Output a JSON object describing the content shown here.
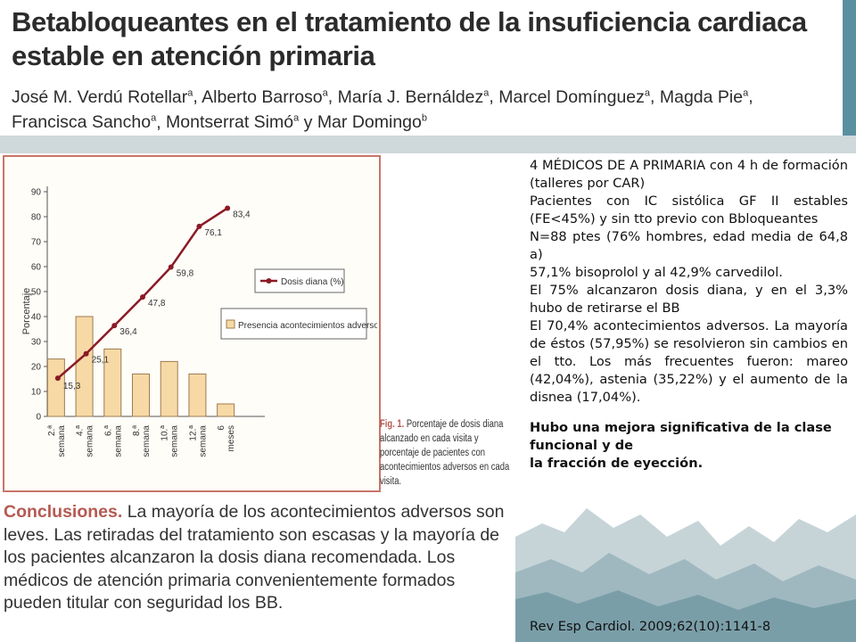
{
  "header": {
    "title_line1": "Betabloqueantes en el tratamiento de la insuficiencia cardiaca",
    "title_line2": "estable en atención primaria",
    "authors_line1": [
      {
        "name": "José M. Verdú Rotellar",
        "sup": "a"
      },
      {
        "name": "Alberto Barroso",
        "sup": "a"
      },
      {
        "name": "María J. Bernáldez",
        "sup": "a"
      },
      {
        "name": "Marcel Domínguez",
        "sup": "a"
      },
      {
        "name": "Magda Pie",
        "sup": "a"
      }
    ],
    "authors_line2": [
      {
        "name": "Francisca Sancho",
        "sup": "a"
      },
      {
        "name": "Montserrat Simó",
        "sup": "a"
      },
      {
        "name": "Mar Domingo",
        "sup": "b"
      }
    ]
  },
  "figure": {
    "caption_label": "Fig. 1.",
    "caption_text": "Porcentaje de dosis diana alcanzado en cada visita y porcentaje de pacientes con acontecimientos adversos en cada visita."
  },
  "chart_data": {
    "type": "bar+line",
    "categories": [
      "2.ª semana",
      "4.ª semana",
      "6.ª semana",
      "8.ª semana",
      "10.ª semana",
      "12.ª semana",
      "6 meses"
    ],
    "series": [
      {
        "name": "Presencia acontecimientos adversos",
        "type": "bar",
        "values": [
          23,
          40,
          27,
          17,
          22,
          17,
          5
        ]
      },
      {
        "name": "Dosis diana (%)",
        "type": "line",
        "values": [
          15.3,
          25.1,
          36.4,
          47.8,
          59.8,
          76.1,
          83.4
        ],
        "labels": [
          "15,3",
          "25,1",
          "36,4",
          "47,8",
          "59,8",
          "76,1",
          "83,4"
        ]
      }
    ],
    "ylabel": "Porcentaje",
    "yticks": [
      0,
      10,
      20,
      30,
      40,
      50,
      60,
      70,
      80,
      90
    ],
    "ylim": [
      0,
      90
    ],
    "colors": {
      "bar_fill": "#f7d9a6",
      "bar_stroke": "#9c7b50",
      "line": "#8b1a25"
    }
  },
  "conclusions": {
    "label": "Conclusiones.",
    "text": " La mayoría de los acontecimientos adversos son leves. Las retiradas del tratamiento son escasas y la mayoría de los pacientes alcanzaron la dosis diana recomendada. Los médicos de atención primaria convenientemente formados pueden titular con seguridad los BB."
  },
  "summary": {
    "paragraphs": [
      "4 MÉDICOS DE A PRIMARIA con 4 h de formación (talleres por CAR)",
      "Pacientes con IC sistólica GF II estables (FE<45%) y sin tto previo con Bbloqueantes",
      "N=88 ptes (76% hombres, edad media de 64,8 a)",
      "57,1% bisoprolol y al 42,9% carvedilol.",
      "El 75% alcanzaron dosis diana, y en el 3,3% hubo de retirarse el BB",
      "El 70,4% acontecimientos adversos. La mayoría de éstos (57,95%) se resolvieron sin cambios en el tto. Los más frecuentes fueron: mareo (42,04%), astenia (35,22%) y el aumento de la disnea (17,04%)."
    ],
    "bold_line1": "Hubo una mejora significativa de la clase funcional y de",
    "bold_line2": "la fracción de eyección."
  },
  "reference": "Rev Esp Cardiol. 2009;62(10):1141-8"
}
